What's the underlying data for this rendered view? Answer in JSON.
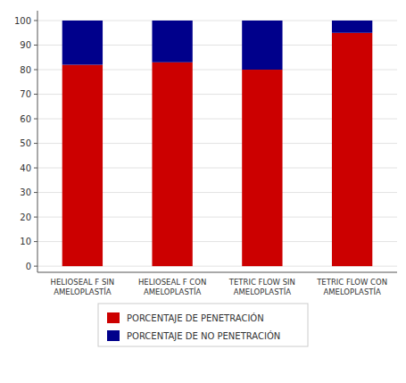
{
  "chart_data": {
    "type": "bar",
    "stacked": true,
    "categories": [
      "HELIOSEAL F SIN\nAMELOPLASTÍA",
      "HELIOSEAL F CON\nAMELOPLASTÍA",
      "TETRIC FLOW SIN\nAMELOPLASTÍA",
      "TETRIC FLOW CON\nAMELOPLASTÍA"
    ],
    "series": [
      {
        "name": "PORCENTAJE DE PENETRACIÓN",
        "color": "#cc0000",
        "values": [
          82,
          83,
          80,
          95
        ]
      },
      {
        "name": "PORCENTAJE DE NO PENETRACIÓN",
        "color": "#00008b",
        "values": [
          18,
          17,
          20,
          5
        ]
      }
    ],
    "ylim": [
      -2.5,
      104
    ],
    "yticks": [
      0,
      10,
      20,
      30,
      40,
      50,
      60,
      70,
      80,
      90,
      100
    ],
    "grid": true,
    "legend": "bottom"
  }
}
